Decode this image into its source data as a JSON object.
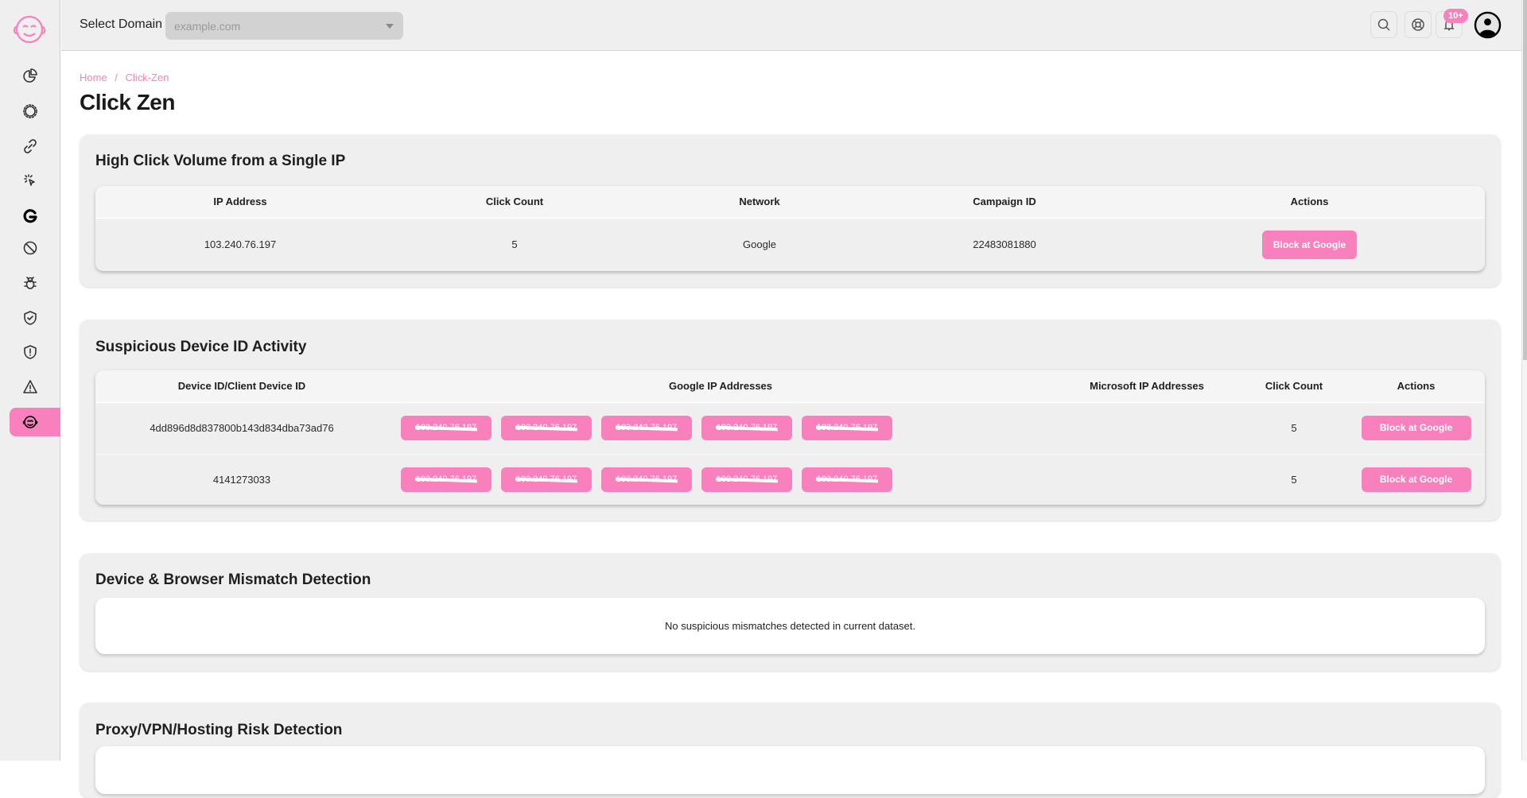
{
  "header": {
    "domain_label": "Select Domain",
    "domain_placeholder": "example.com",
    "notification_badge": "10+"
  },
  "sidebar": {
    "items": [
      {
        "icon": "pie-chart-icon"
      },
      {
        "icon": "settings-icon"
      },
      {
        "icon": "link-icon"
      },
      {
        "icon": "click-cursor-icon"
      },
      {
        "icon": "google-icon"
      },
      {
        "icon": "block-icon"
      },
      {
        "icon": "bug-icon"
      },
      {
        "icon": "shield-check-icon"
      },
      {
        "icon": "shield-alert-icon"
      },
      {
        "icon": "warning-icon"
      },
      {
        "icon": "click-zen-icon",
        "active": true
      }
    ]
  },
  "breadcrumb": {
    "home": "Home",
    "sep": "/",
    "current": "Click-Zen"
  },
  "page_title": "Click Zen",
  "accent_color": "#f780bd",
  "high_click": {
    "title": "High Click Volume from a Single IP",
    "columns": [
      "IP Address",
      "Click Count",
      "Network",
      "Campaign ID",
      "Actions"
    ],
    "rows": [
      {
        "ip": "103.240.76.197",
        "clicks": "5",
        "network": "Google",
        "campaign": "22483081880",
        "action": "Block at Google"
      }
    ]
  },
  "device": {
    "title": "Suspicious Device ID Activity",
    "columns": [
      "Device ID/Client Device ID",
      "Google IP Addresses",
      "Microsoft IP Addresses",
      "Click Count",
      "Actions"
    ],
    "rows": [
      {
        "device": "4dd896d8d837800b143d834dba73ad76",
        "google_ips": [
          "103.240.76.197",
          "103.240.76.197",
          "103.240.76.197",
          "103.240.76.197",
          "103.240.76.197"
        ],
        "microsoft_ips": "",
        "clicks": "5",
        "action": "Block at Google"
      },
      {
        "device": "4141273033",
        "google_ips": [
          "103.240.76.197",
          "103.240.76.197",
          "103.240.76.197",
          "103.240.76.197",
          "103.240.76.197"
        ],
        "microsoft_ips": "",
        "clicks": "5",
        "action": "Block at Google"
      }
    ]
  },
  "mismatch": {
    "title": "Device & Browser Mismatch Detection",
    "empty": "No suspicious mismatches detected in current dataset."
  },
  "proxy": {
    "title": "Proxy/VPN/Hosting Risk Detection"
  }
}
